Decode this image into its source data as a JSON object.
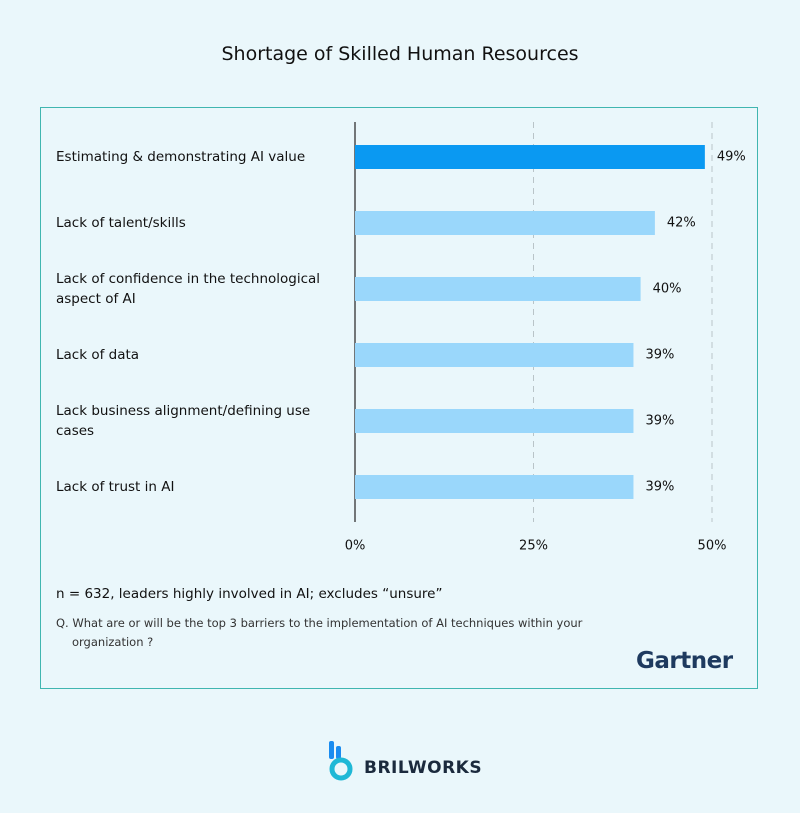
{
  "chart_data": {
    "type": "hbar",
    "title": "Shortage of Skilled Human Resources",
    "categories": [
      "Estimating & demonstrating AI value",
      "Lack of talent/skills",
      "Lack of confidence in the technological aspect of AI",
      "Lack of data",
      "Lack business alignment/defining use cases",
      "Lack of trust in AI"
    ],
    "values": [
      49,
      42,
      40,
      39,
      39,
      39
    ],
    "value_labels": [
      "49%",
      "42%",
      "40%",
      "39%",
      "39%",
      "39%"
    ],
    "colors": [
      "#0a99f2",
      "#9ad7fb",
      "#9ad7fb",
      "#9ad7fb",
      "#9ad7fb",
      "#9ad7fb"
    ],
    "xlim": [
      0,
      50
    ],
    "xticks": [
      {
        "value": 0,
        "label": "0%"
      },
      {
        "value": 25,
        "label": "25%"
      },
      {
        "value": 50,
        "label": "50%"
      }
    ],
    "grid": true,
    "note": "n = 632, leaders highly involved in AI; excludes “unsure”",
    "question": "Q. What are or will be the top 3 barriers to the implementation of AI techniques  within your organization ?",
    "source": "Gartner",
    "brand": "BRILWORKS"
  }
}
